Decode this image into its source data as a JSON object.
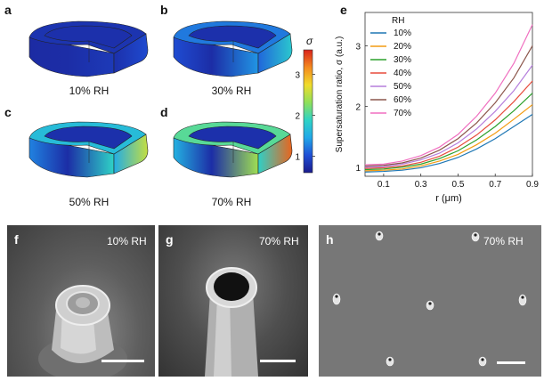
{
  "panels": {
    "a": {
      "letter": "a",
      "caption": "10% RH",
      "level": 0.1
    },
    "b": {
      "letter": "b",
      "caption": "30% RH",
      "level": 0.3
    },
    "c": {
      "letter": "c",
      "caption": "50% RH",
      "level": 0.5
    },
    "d": {
      "letter": "d",
      "caption": "70% RH",
      "level": 0.7
    },
    "e": {
      "letter": "e"
    },
    "f": {
      "letter": "f",
      "label": "10% RH"
    },
    "g": {
      "letter": "g",
      "label": "70% RH"
    },
    "h": {
      "letter": "h",
      "label": "70% RH"
    }
  },
  "colorbar": {
    "symbol": "σ",
    "ticks": [
      "1",
      "2",
      "3"
    ],
    "colors": [
      "#1a1a8c",
      "#1f4fd6",
      "#21a8e8",
      "#2fd3c5",
      "#8fe05a",
      "#f0dc2c",
      "#f48a1e",
      "#d9221c"
    ]
  },
  "chart_data": {
    "type": "line",
    "xlabel": "r (μm)",
    "ylabel": "Supersaturation ratio, σ (a.u.)",
    "xlim": [
      0,
      0.9
    ],
    "ylim": [
      0.85,
      3.55
    ],
    "xticks": [
      "0.1",
      "0.3",
      "0.5",
      "0.7",
      "0.9"
    ],
    "yticks": [
      "1",
      "2",
      "3"
    ],
    "legend_title": "RH",
    "legend_position": "top-left",
    "x": [
      0.0,
      0.1,
      0.2,
      0.3,
      0.4,
      0.5,
      0.6,
      0.7,
      0.8,
      0.9
    ],
    "series": [
      {
        "name": "10%",
        "color": "#1f77b4",
        "values": [
          0.92,
          0.93,
          0.95,
          0.99,
          1.06,
          1.16,
          1.3,
          1.47,
          1.67,
          1.87
        ]
      },
      {
        "name": "20%",
        "color": "#f39c12",
        "values": [
          0.94,
          0.95,
          0.97,
          1.02,
          1.1,
          1.21,
          1.37,
          1.56,
          1.79,
          2.03
        ]
      },
      {
        "name": "30%",
        "color": "#2ca02c",
        "values": [
          0.96,
          0.97,
          1.0,
          1.05,
          1.14,
          1.27,
          1.45,
          1.67,
          1.93,
          2.22
        ]
      },
      {
        "name": "40%",
        "color": "#e74c3c",
        "values": [
          0.98,
          0.99,
          1.02,
          1.08,
          1.18,
          1.33,
          1.53,
          1.78,
          2.08,
          2.42
        ]
      },
      {
        "name": "50%",
        "color": "#b57edc",
        "values": [
          1.0,
          1.01,
          1.05,
          1.12,
          1.23,
          1.4,
          1.63,
          1.92,
          2.26,
          2.68
        ]
      },
      {
        "name": "60%",
        "color": "#8c564b",
        "values": [
          1.02,
          1.03,
          1.07,
          1.15,
          1.28,
          1.47,
          1.73,
          2.06,
          2.47,
          3.0
        ]
      },
      {
        "name": "70%",
        "color": "#f06fc0",
        "values": [
          1.04,
          1.05,
          1.1,
          1.19,
          1.33,
          1.54,
          1.84,
          2.22,
          2.71,
          3.35
        ]
      }
    ]
  }
}
